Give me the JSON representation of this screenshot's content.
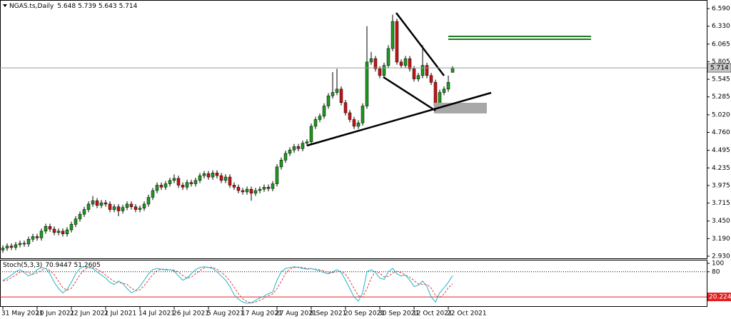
{
  "chart_data": {
    "type": "candlestick",
    "title": "NGAS.ts,Daily",
    "categories": [
      "31 May 2021",
      null,
      null,
      null,
      null,
      null,
      null,
      null,
      "10 Jun 2021",
      null,
      null,
      null,
      null,
      null,
      null,
      null,
      "22 Jun 2021",
      null,
      null,
      null,
      null,
      null,
      null,
      null,
      "2 Jul 2021",
      null,
      null,
      null,
      null,
      null,
      null,
      null,
      "14 Jul 2021",
      null,
      null,
      null,
      null,
      null,
      null,
      null,
      "26 Jul 2021",
      null,
      null,
      null,
      null,
      null,
      null,
      null,
      "5 Aug 2021",
      null,
      null,
      null,
      null,
      null,
      null,
      null,
      "17 Aug 2021",
      null,
      null,
      null,
      null,
      null,
      null,
      null,
      "27 Aug 2021",
      null,
      null,
      null,
      null,
      null,
      null,
      null,
      "8 Sep 2021",
      null,
      null,
      null,
      null,
      null,
      null,
      null,
      "20 Sep 2021",
      null,
      null,
      null,
      null,
      null,
      null,
      null,
      "30 Sep 2021",
      null,
      null,
      null,
      null,
      null,
      null,
      null,
      "12 Oct 2021",
      null,
      null,
      null,
      null,
      null,
      null,
      null,
      "22 Oct 2021",
      null
    ],
    "open": [
      3.02,
      3.05,
      3.08,
      3.06,
      3.1,
      3.12,
      3.11,
      3.18,
      3.22,
      3.2,
      3.3,
      3.37,
      3.33,
      3.28,
      3.3,
      3.26,
      3.32,
      3.4,
      3.48,
      3.55,
      3.62,
      3.7,
      3.75,
      3.68,
      3.72,
      3.7,
      3.62,
      3.66,
      3.6,
      3.65,
      3.7,
      3.66,
      3.62,
      3.64,
      3.7,
      3.8,
      3.9,
      3.98,
      3.95,
      4.0,
      4.05,
      4.08,
      3.98,
      3.95,
      4.02,
      4.0,
      4.05,
      4.12,
      4.15,
      4.1,
      4.16,
      4.12,
      4.05,
      4.1,
      3.98,
      3.95,
      3.9,
      3.88,
      3.92,
      3.86,
      3.9,
      3.92,
      3.95,
      3.93,
      4.0,
      4.25,
      4.35,
      4.45,
      4.5,
      4.55,
      4.52,
      4.6,
      4.62,
      4.85,
      4.95,
      5.0,
      5.15,
      5.3,
      5.35,
      5.4,
      5.2,
      5.05,
      4.95,
      4.85,
      4.9,
      5.15,
      5.8,
      5.85,
      5.7,
      5.6,
      5.75,
      6.0,
      6.4,
      5.8,
      5.75,
      5.85,
      5.7,
      5.55,
      5.6,
      5.75,
      5.6,
      5.5,
      5.15,
      5.35,
      5.4,
      5.648
    ],
    "high": [
      3.09,
      3.12,
      3.12,
      3.14,
      3.16,
      3.16,
      3.22,
      3.26,
      3.26,
      3.34,
      3.41,
      3.41,
      3.37,
      3.34,
      3.34,
      3.36,
      3.44,
      3.52,
      3.59,
      3.66,
      3.74,
      3.82,
      3.79,
      3.76,
      3.76,
      3.74,
      3.7,
      3.7,
      3.69,
      3.74,
      3.74,
      3.7,
      3.68,
      3.74,
      3.84,
      3.94,
      4.02,
      4.02,
      4.04,
      4.09,
      4.14,
      4.12,
      4.02,
      4.06,
      4.06,
      4.09,
      4.16,
      4.19,
      4.19,
      4.2,
      4.2,
      4.16,
      4.14,
      4.14,
      4.02,
      3.99,
      3.94,
      3.96,
      3.96,
      3.94,
      3.96,
      3.99,
      3.99,
      4.04,
      4.29,
      4.39,
      4.49,
      4.54,
      4.59,
      4.59,
      4.64,
      4.66,
      4.89,
      4.99,
      5.04,
      5.19,
      5.34,
      5.65,
      5.7,
      5.44,
      5.24,
      5.09,
      4.99,
      4.94,
      5.19,
      6.33,
      5.95,
      5.89,
      5.74,
      5.79,
      6.05,
      6.5,
      6.44,
      5.84,
      5.89,
      5.89,
      5.74,
      5.64,
      6.05,
      5.79,
      5.64,
      5.54,
      5.39,
      5.44,
      5.6,
      5.739
    ],
    "low": [
      2.98,
      3.01,
      3.02,
      3.02,
      3.06,
      3.07,
      3.07,
      3.14,
      3.16,
      3.16,
      3.26,
      3.29,
      3.24,
      3.24,
      3.22,
      3.22,
      3.28,
      3.36,
      3.44,
      3.51,
      3.58,
      3.66,
      3.64,
      3.64,
      3.66,
      3.58,
      3.58,
      3.52,
      3.56,
      3.61,
      3.62,
      3.58,
      3.58,
      3.6,
      3.66,
      3.76,
      3.86,
      3.91,
      3.91,
      3.96,
      4.01,
      3.94,
      3.91,
      3.91,
      3.96,
      3.96,
      4.01,
      4.08,
      4.06,
      4.06,
      4.08,
      4.01,
      4.01,
      3.94,
      3.91,
      3.86,
      3.84,
      3.84,
      3.75,
      3.82,
      3.86,
      3.88,
      3.89,
      3.89,
      3.96,
      4.21,
      4.31,
      4.41,
      4.46,
      4.48,
      4.48,
      4.56,
      4.58,
      4.81,
      4.91,
      4.96,
      5.11,
      5.26,
      5.31,
      5.16,
      5.01,
      4.91,
      4.81,
      4.81,
      4.86,
      5.11,
      5.76,
      5.66,
      5.56,
      5.56,
      5.71,
      5.96,
      5.76,
      5.71,
      5.71,
      5.66,
      5.51,
      5.51,
      5.56,
      5.56,
      5.46,
      5.11,
      5.11,
      5.31,
      5.36,
      5.643
    ],
    "close": [
      3.05,
      3.08,
      3.06,
      3.1,
      3.12,
      3.11,
      3.18,
      3.22,
      3.2,
      3.3,
      3.37,
      3.33,
      3.28,
      3.3,
      3.26,
      3.32,
      3.4,
      3.48,
      3.55,
      3.62,
      3.7,
      3.75,
      3.68,
      3.72,
      3.7,
      3.62,
      3.66,
      3.6,
      3.65,
      3.7,
      3.66,
      3.62,
      3.64,
      3.7,
      3.8,
      3.9,
      3.98,
      3.95,
      4.0,
      4.05,
      4.08,
      3.98,
      3.95,
      4.02,
      4.0,
      4.05,
      4.12,
      4.15,
      4.1,
      4.16,
      4.12,
      4.05,
      4.1,
      3.98,
      3.95,
      3.9,
      3.88,
      3.92,
      3.86,
      3.9,
      3.92,
      3.95,
      3.93,
      4.0,
      4.25,
      4.35,
      4.45,
      4.5,
      4.55,
      4.52,
      4.6,
      4.62,
      4.85,
      4.95,
      5.0,
      5.15,
      5.3,
      5.35,
      5.4,
      5.2,
      5.05,
      4.95,
      4.85,
      4.9,
      5.15,
      5.8,
      5.85,
      5.7,
      5.6,
      5.75,
      6.0,
      6.4,
      5.8,
      5.75,
      5.85,
      5.7,
      5.55,
      5.6,
      5.75,
      5.6,
      5.5,
      5.15,
      5.35,
      5.4,
      5.5,
      5.714
    ],
    "up_color": "#1e9a1e",
    "down_color": "#c81414",
    "ylim": [
      2.898,
      6.717
    ],
    "yticks": [
      {
        "value": 6.59,
        "label": "6.590"
      },
      {
        "value": 6.33,
        "label": "6.330"
      },
      6.065,
      5.805,
      5.545,
      5.285,
      {
        "value": 5.02,
        "label": "5.020"
      },
      {
        "value": 4.76,
        "label": "4.760"
      },
      4.495,
      4.235,
      3.975,
      3.715,
      {
        "value": 3.45,
        "label": "3.450"
      },
      {
        "value": 3.19,
        "label": "3.190"
      },
      {
        "value": 2.93,
        "label": "2.930"
      }
    ],
    "indicator": {
      "label": "Stoch(5,3,3)",
      "ylim": [
        0,
        100
      ],
      "yticks": [
        100,
        80
      ],
      "level": 20.2247,
      "level_color": "#e02020",
      "k": {
        "color": "#20b4c8",
        "values": [
          60,
          65,
          72,
          80,
          85,
          78,
          70,
          75,
          85,
          90,
          88,
          75,
          55,
          40,
          30,
          38,
          55,
          75,
          88,
          92,
          90,
          88,
          80,
          72,
          65,
          55,
          50,
          58,
          52,
          40,
          30,
          35,
          45,
          60,
          75,
          85,
          88,
          86,
          84,
          85,
          82,
          70,
          60,
          65,
          75,
          85,
          90,
          92,
          90,
          88,
          80,
          70,
          60,
          45,
          25,
          15,
          8,
          5,
          6,
          12,
          18,
          22,
          28,
          32,
          60,
          80,
          88,
          90,
          92,
          90,
          88,
          86,
          88,
          85,
          82,
          78,
          75,
          80,
          85,
          78,
          60,
          40,
          20,
          10,
          30,
          80,
          85,
          78,
          65,
          62,
          80,
          88,
          75,
          70,
          72,
          60,
          45,
          48,
          58,
          45,
          20,
          8,
          30,
          42,
          55,
          70.9447
        ]
      },
      "d": {
        "color": "#e03c3c",
        "values": [
          58,
          60,
          66,
          72,
          79,
          81,
          78,
          74,
          77,
          83,
          88,
          83,
          73,
          57,
          42,
          36,
          41,
          56,
          73,
          85,
          90,
          90,
          86,
          80,
          72,
          64,
          57,
          54,
          53,
          50,
          41,
          35,
          37,
          47,
          60,
          73,
          83,
          86,
          86,
          85,
          84,
          79,
          71,
          65,
          67,
          75,
          83,
          89,
          91,
          90,
          86,
          79,
          70,
          58,
          43,
          28,
          16,
          9,
          6,
          8,
          12,
          17,
          23,
          27,
          40,
          57,
          76,
          86,
          90,
          91,
          90,
          88,
          87,
          86,
          85,
          82,
          78,
          78,
          80,
          81,
          74,
          59,
          40,
          23,
          20,
          40,
          65,
          81,
          76,
          68,
          69,
          77,
          81,
          78,
          72,
          67,
          59,
          51,
          50,
          50,
          41,
          24,
          19,
          27,
          42,
          51.2605
        ]
      }
    }
  }
}
